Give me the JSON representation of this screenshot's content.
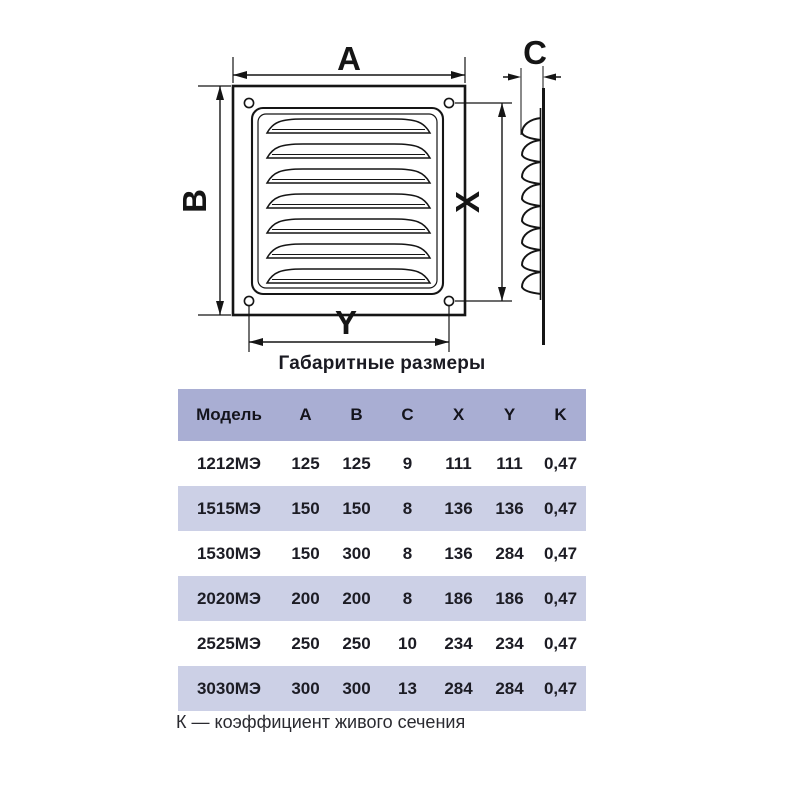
{
  "diagram": {
    "title": "Габаритные размеры",
    "labels": {
      "outer_width": "A",
      "outer_height": "B",
      "thickness": "C",
      "inner_height": "X",
      "inner_width": "Y"
    }
  },
  "table": {
    "columns": [
      "Модель",
      "A",
      "B",
      "C",
      "X",
      "Y",
      "K"
    ],
    "rows": [
      [
        "1212МЭ",
        "125",
        "125",
        "9",
        "111",
        "111",
        "0,47"
      ],
      [
        "1515МЭ",
        "150",
        "150",
        "8",
        "136",
        "136",
        "0,47"
      ],
      [
        "1530МЭ",
        "150",
        "300",
        "8",
        "136",
        "284",
        "0,47"
      ],
      [
        "2020МЭ",
        "200",
        "200",
        "8",
        "186",
        "186",
        "0,47"
      ],
      [
        "2525МЭ",
        "250",
        "250",
        "10",
        "234",
        "234",
        "0,47"
      ],
      [
        "3030МЭ",
        "300",
        "300",
        "13",
        "284",
        "284",
        "0,47"
      ]
    ],
    "footnote": "К — коэффициент живого сечения"
  },
  "colors": {
    "table_header_bg": "#a9aed3",
    "table_row_alt_bg": "#ccd0e6",
    "line_color": "#151515",
    "text_color": "#1c1c24"
  }
}
